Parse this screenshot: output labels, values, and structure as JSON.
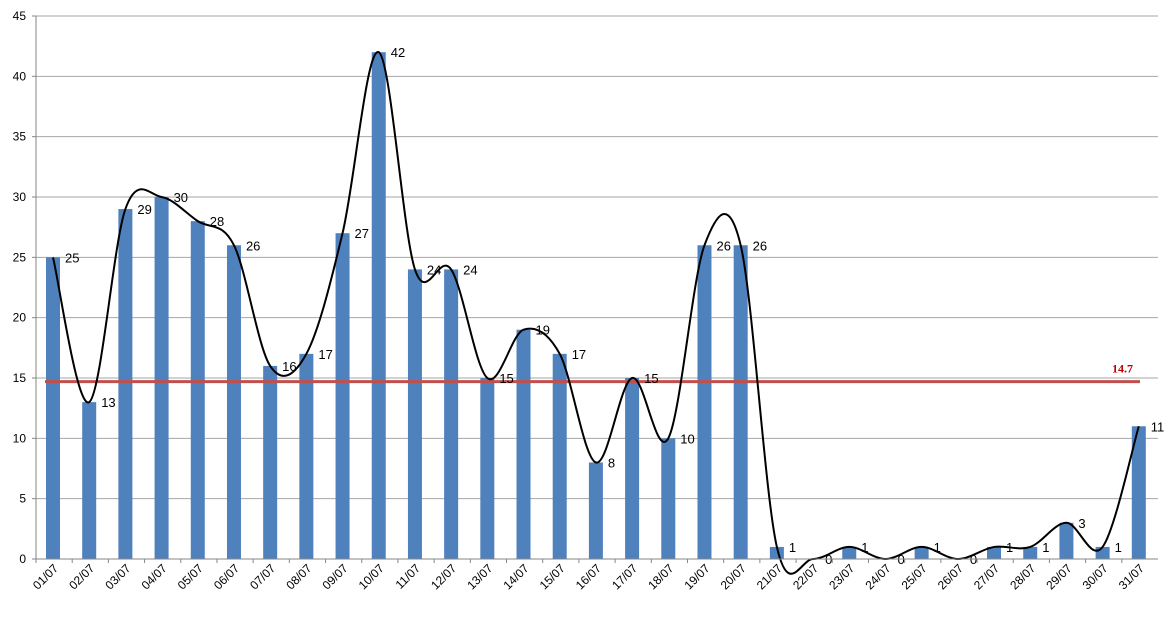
{
  "chart_data": {
    "type": "bar",
    "title": "",
    "xlabel": "",
    "ylabel": "",
    "categories": [
      "01/07",
      "02/07",
      "03/07",
      "04/07",
      "05/07",
      "06/07",
      "07/07",
      "08/07",
      "09/07",
      "10/07",
      "11/07",
      "12/07",
      "13/07",
      "14/07",
      "15/07",
      "16/07",
      "17/07",
      "18/07",
      "19/07",
      "20/07",
      "21/07",
      "22/07",
      "23/07",
      "24/07",
      "25/07",
      "26/07",
      "27/07",
      "28/07",
      "29/07",
      "30/07",
      "31/07"
    ],
    "series": [
      {
        "values": [
          25,
          13,
          29,
          30,
          28,
          26,
          16,
          17,
          27,
          42,
          24,
          24,
          15,
          19,
          17,
          8,
          15,
          10,
          26,
          26,
          1,
          0,
          1,
          0,
          1,
          0,
          1,
          1,
          3,
          1,
          11
        ],
        "color": "#4f81bd",
        "smooth_line_color": "#000000"
      }
    ],
    "data_labels": [
      "25",
      "13",
      "29",
      "30",
      "28",
      "26",
      "16",
      "17",
      "27",
      "42",
      "24",
      "24",
      "15",
      "19",
      "17",
      "8",
      "15",
      "10",
      "26",
      "26",
      "1",
      "0",
      "1",
      "0",
      "1",
      "0",
      "1",
      "1",
      "3",
      "1",
      "11"
    ],
    "ylim": [
      0,
      45
    ],
    "y_ticks": [
      "0",
      "5",
      "10",
      "15",
      "20",
      "25",
      "30",
      "35",
      "40",
      "45"
    ],
    "grid": true,
    "legend": "none",
    "average": {
      "value": 14.7,
      "label": "14.7",
      "color": "#c0504d",
      "label_color": "#c00000"
    }
  }
}
